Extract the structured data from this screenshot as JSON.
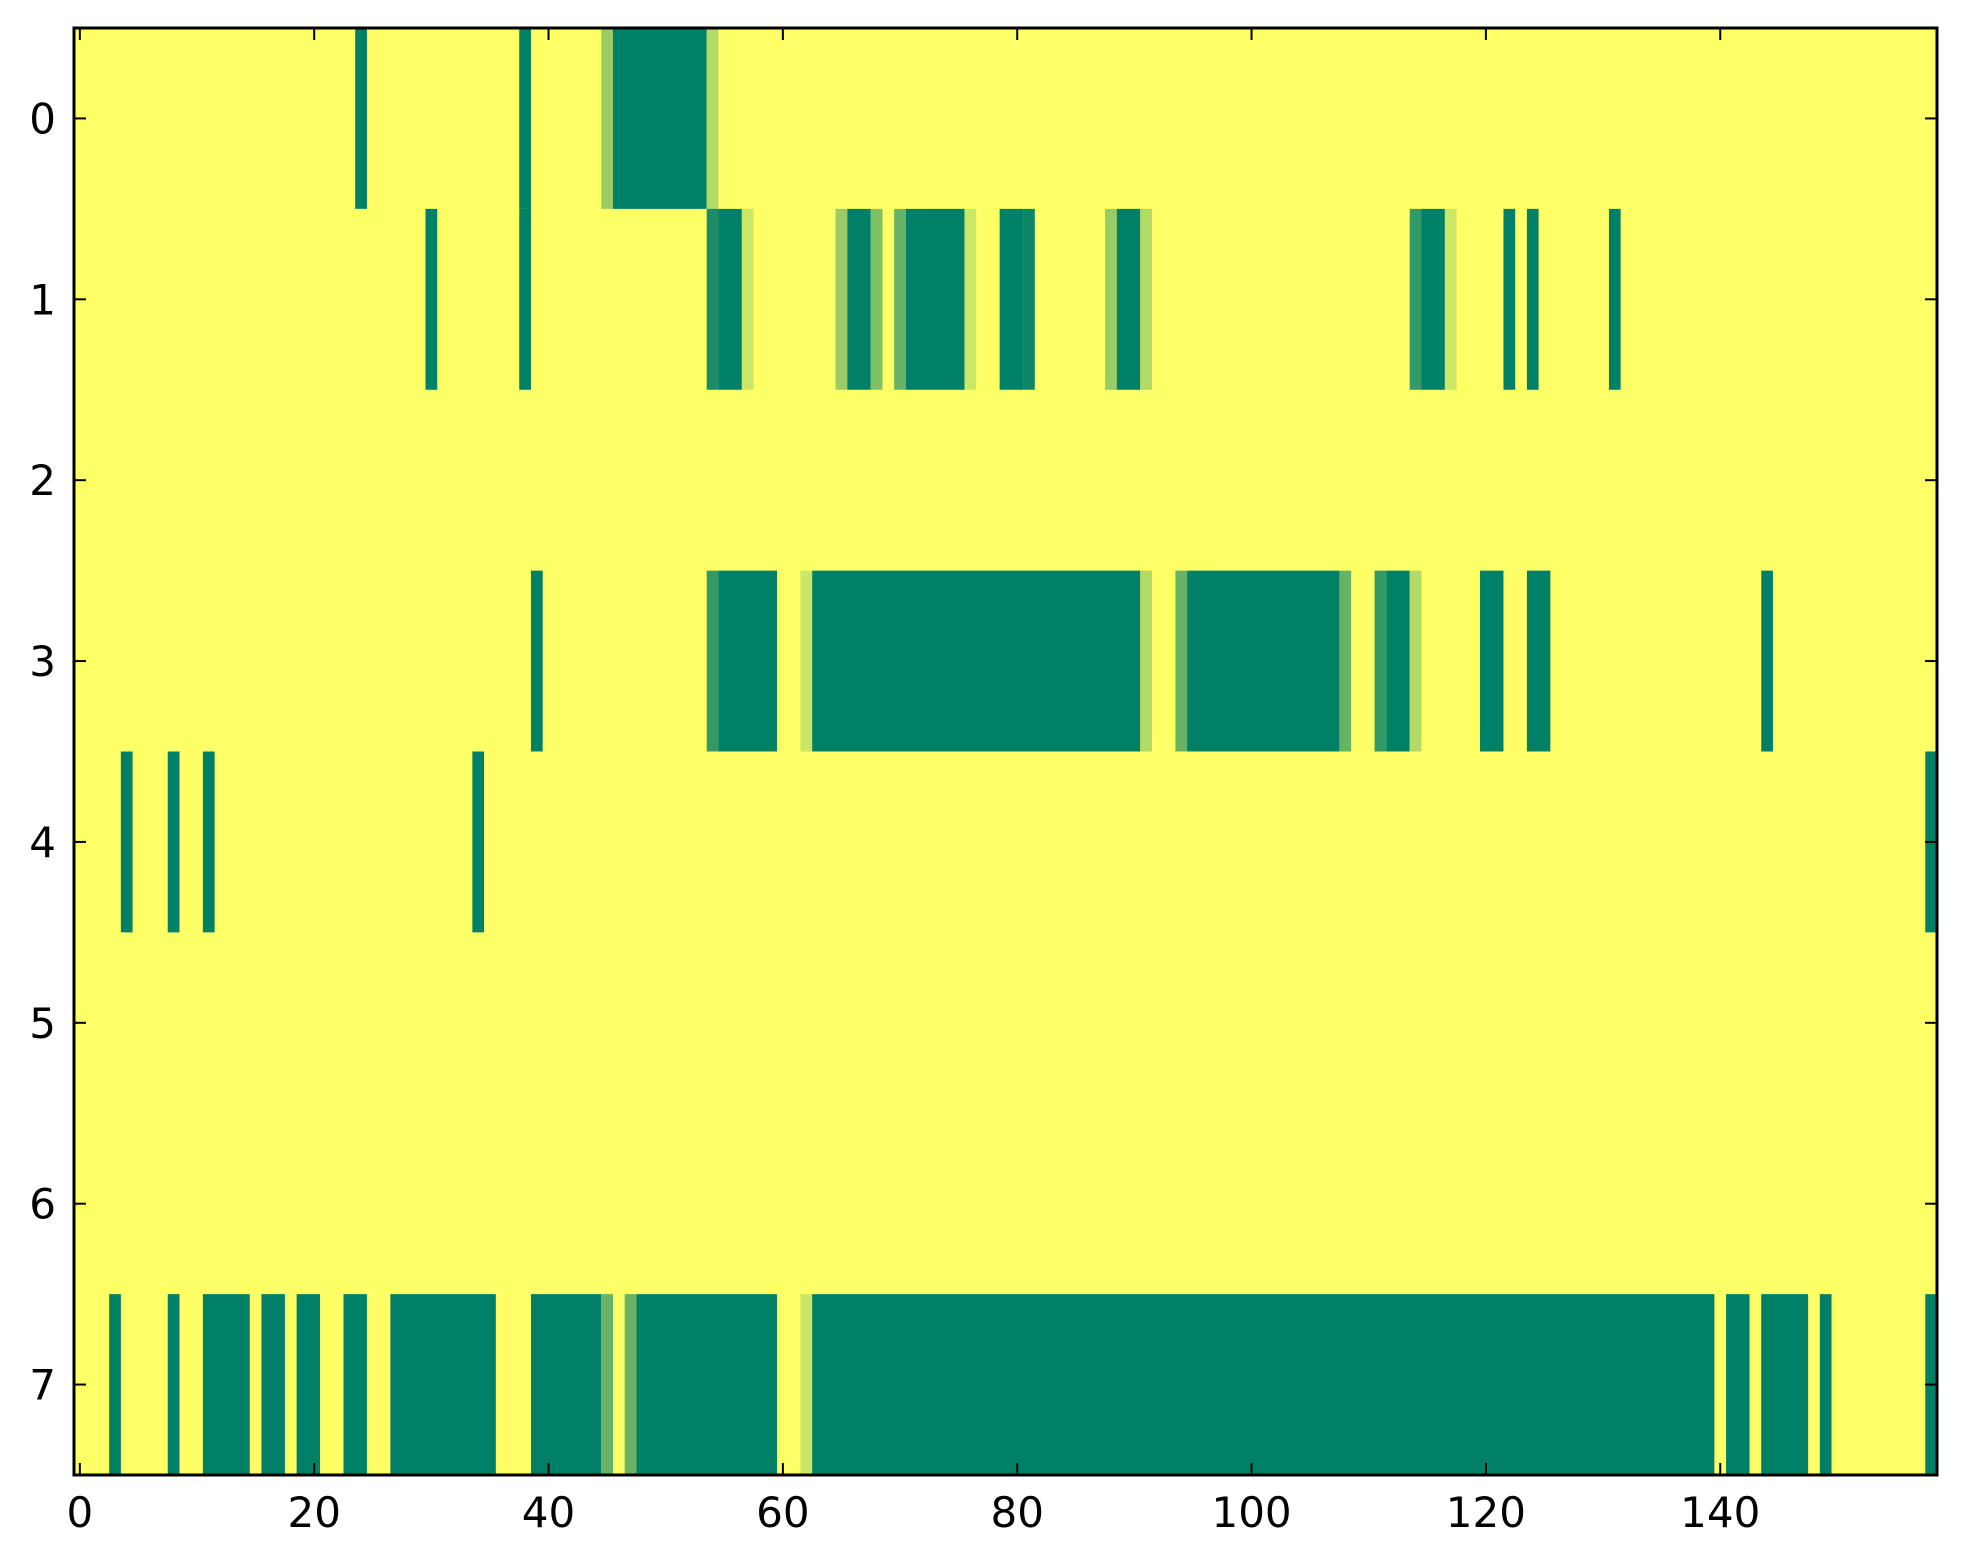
{
  "chart_data": {
    "type": "heatmap",
    "title": "",
    "xlabel": "",
    "ylabel": "",
    "xlim": [
      -0.5,
      158.5
    ],
    "ylim": [
      7.5,
      -0.5
    ],
    "x_ticks": [
      0,
      20,
      40,
      60,
      80,
      100,
      120,
      140
    ],
    "y_ticks": [
      0,
      1,
      2,
      3,
      4,
      5,
      6,
      7
    ],
    "value_range": [
      0,
      1
    ],
    "colormap": "summer_r",
    "colormap_low": "#ffff66",
    "colormap_high": "#008066",
    "background_value": 0,
    "rows": [
      {
        "row": 0,
        "cells": [
          [
            24,
            24,
            1
          ],
          [
            38,
            38,
            1
          ],
          [
            45,
            45,
            0.4
          ],
          [
            46,
            53,
            1
          ],
          [
            54,
            54,
            0.3
          ]
        ]
      },
      {
        "row": 1,
        "cells": [
          [
            30,
            30,
            1
          ],
          [
            38,
            38,
            1
          ],
          [
            54,
            54,
            0.9
          ],
          [
            55,
            56,
            1
          ],
          [
            57,
            57,
            0.2
          ],
          [
            65,
            65,
            0.4
          ],
          [
            66,
            67,
            1
          ],
          [
            68,
            68,
            0.5
          ],
          [
            70,
            70,
            0.6
          ],
          [
            71,
            75,
            1
          ],
          [
            76,
            76,
            0.2
          ],
          [
            79,
            80,
            1
          ],
          [
            81,
            81,
            0.95
          ],
          [
            88,
            88,
            0.4
          ],
          [
            89,
            90,
            1
          ],
          [
            91,
            91,
            0.3
          ],
          [
            114,
            114,
            0.8
          ],
          [
            115,
            116,
            1
          ],
          [
            117,
            117,
            0.2
          ],
          [
            122,
            122,
            1
          ],
          [
            124,
            124,
            1
          ],
          [
            131,
            131,
            1
          ]
        ]
      },
      {
        "row": 2,
        "cells": []
      },
      {
        "row": 3,
        "cells": [
          [
            39,
            39,
            1
          ],
          [
            54,
            54,
            0.8
          ],
          [
            55,
            59,
            1
          ],
          [
            62,
            62,
            0.2
          ],
          [
            63,
            90,
            1
          ],
          [
            91,
            91,
            0.3
          ],
          [
            94,
            94,
            0.6
          ],
          [
            95,
            107,
            1
          ],
          [
            108,
            108,
            0.6
          ],
          [
            111,
            111,
            0.8
          ],
          [
            112,
            113,
            1
          ],
          [
            114,
            114,
            0.3
          ],
          [
            120,
            121,
            1
          ],
          [
            124,
            125,
            1
          ],
          [
            144,
            144,
            1
          ]
        ]
      },
      {
        "row": 4,
        "cells": [
          [
            4,
            4,
            1
          ],
          [
            8,
            8,
            1
          ],
          [
            11,
            11,
            1
          ],
          [
            34,
            34,
            1
          ],
          [
            158,
            158,
            1
          ]
        ]
      },
      {
        "row": 5,
        "cells": []
      },
      {
        "row": 6,
        "cells": []
      },
      {
        "row": 7,
        "cells": [
          [
            3,
            3,
            1
          ],
          [
            8,
            8,
            1
          ],
          [
            11,
            14,
            1
          ],
          [
            16,
            17,
            1
          ],
          [
            19,
            20,
            1
          ],
          [
            23,
            24,
            1
          ],
          [
            27,
            35,
            1
          ],
          [
            39,
            44,
            1
          ],
          [
            45,
            45,
            0.6
          ],
          [
            47,
            47,
            0.6
          ],
          [
            48,
            59,
            1
          ],
          [
            62,
            62,
            0.2
          ],
          [
            63,
            139,
            1
          ],
          [
            141,
            142,
            1
          ],
          [
            144,
            147,
            1
          ],
          [
            149,
            149,
            1
          ],
          [
            158,
            158,
            1
          ]
        ]
      }
    ]
  }
}
